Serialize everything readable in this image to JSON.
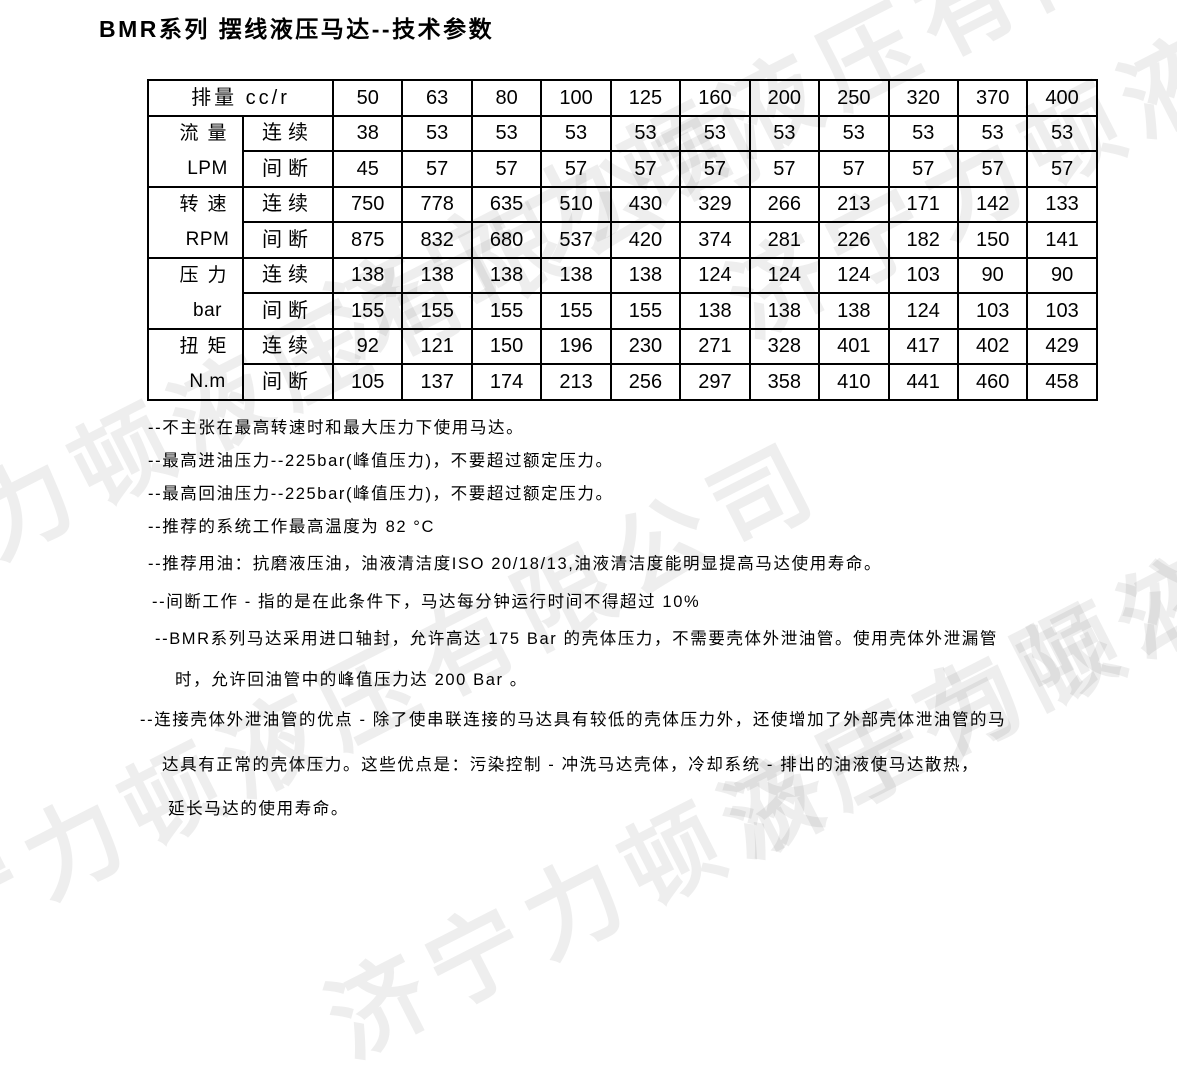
{
  "page": {
    "title": "BMR系列 摆线液压马达--技术参数"
  },
  "watermark": {
    "text": "济宁力顿液压有限公司"
  },
  "table": {
    "header": {
      "label": "排量 cc/r",
      "displacements": [
        "50",
        "63",
        "80",
        "100",
        "125",
        "160",
        "200",
        "250",
        "320",
        "370",
        "400"
      ]
    },
    "row_groups": [
      {
        "param": "流量",
        "unit": "LPM",
        "rows": [
          {
            "mode": "连续",
            "values": [
              "38",
              "53",
              "53",
              "53",
              "53",
              "53",
              "53",
              "53",
              "53",
              "53",
              "53"
            ]
          },
          {
            "mode": "间断",
            "values": [
              "45",
              "57",
              "57",
              "57",
              "57",
              "57",
              "57",
              "57",
              "57",
              "57",
              "57"
            ]
          }
        ]
      },
      {
        "param": "转速",
        "unit": "RPM",
        "rows": [
          {
            "mode": "连续",
            "values": [
              "750",
              "778",
              "635",
              "510",
              "430",
              "329",
              "266",
              "213",
              "171",
              "142",
              "133"
            ]
          },
          {
            "mode": "间断",
            "values": [
              "875",
              "832",
              "680",
              "537",
              "420",
              "374",
              "281",
              "226",
              "182",
              "150",
              "141"
            ]
          }
        ]
      },
      {
        "param": "压力",
        "unit": "bar",
        "rows": [
          {
            "mode": "连续",
            "values": [
              "138",
              "138",
              "138",
              "138",
              "138",
              "124",
              "124",
              "124",
              "103",
              "90",
              "90"
            ]
          },
          {
            "mode": "间断",
            "values": [
              "155",
              "155",
              "155",
              "155",
              "155",
              "138",
              "138",
              "138",
              "124",
              "103",
              "103"
            ]
          }
        ]
      },
      {
        "param": "扭矩",
        "unit": "N.m",
        "rows": [
          {
            "mode": "连续",
            "values": [
              "92",
              "121",
              "150",
              "196",
              "230",
              "271",
              "328",
              "401",
              "417",
              "402",
              "429"
            ]
          },
          {
            "mode": "间断",
            "values": [
              "105",
              "137",
              "174",
              "213",
              "256",
              "297",
              "358",
              "410",
              "441",
              "460",
              "458"
            ]
          }
        ]
      }
    ]
  },
  "notes": [
    "--不主张在最高转速时和最大压力下使用马达。",
    "--最高进油压力--225bar(峰值压力)，不要超过额定压力。",
    "--最高回油压力--225bar(峰值压力)，不要超过额定压力。",
    "--推荐的系统工作最高温度为 82 °C",
    "--推荐用油：抗磨液压油，油液清洁度ISO 20/18/13,油液清洁度能明显提高马达使用寿命。",
    "--间断工作 - 指的是在此条件下，马达每分钟运行时间不得超过 10%",
    "--BMR系列马达采用进口轴封，允许高达 175 Bar 的壳体压力，不需要壳体外泄油管。使用壳体外泄漏管",
    "时，允许回油管中的峰值压力达 200 Bar 。",
    "--连接壳体外泄油管的优点 - 除了使串联连接的马达具有较低的壳体压力外，还使增加了外部壳体泄油管的马",
    "达具有正常的壳体压力。这些优点是：污染控制 - 冲洗马达壳体，冷却系统 - 排出的油液使马达散热，",
    "延长马达的使用寿命。"
  ]
}
